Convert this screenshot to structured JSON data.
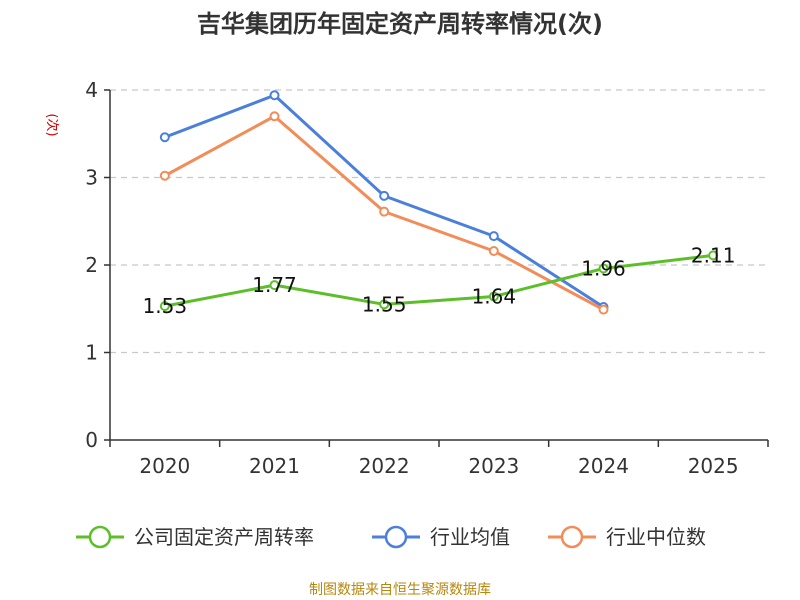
{
  "chart_data": {
    "type": "line",
    "title": "吉华集团历年固定资产周转率情况(次)",
    "ylabel": "(次)",
    "xlabel": "",
    "categories": [
      "2020",
      "2021",
      "2022",
      "2023",
      "2024",
      "2025"
    ],
    "ylim": [
      0,
      4
    ],
    "yticks": [
      0,
      1,
      2,
      3,
      4
    ],
    "grid": true,
    "legend_position": "bottom",
    "series": [
      {
        "name": "公司固定资产周转率",
        "color": "#5cbf2a",
        "values": [
          1.53,
          1.77,
          1.55,
          1.64,
          1.96,
          2.11
        ],
        "labels": [
          "1.53",
          "1.77",
          "1.55",
          "1.64",
          "1.96",
          "2.11"
        ]
      },
      {
        "name": "行业均值",
        "color": "#4a7fdc",
        "values": [
          3.46,
          3.94,
          2.79,
          2.33,
          1.52,
          null
        ]
      },
      {
        "name": "行业中位数",
        "color": "#f28c58",
        "values": [
          3.02,
          3.7,
          2.61,
          2.16,
          1.49,
          null
        ]
      }
    ]
  },
  "source": "制图数据来自恒生聚源数据库"
}
